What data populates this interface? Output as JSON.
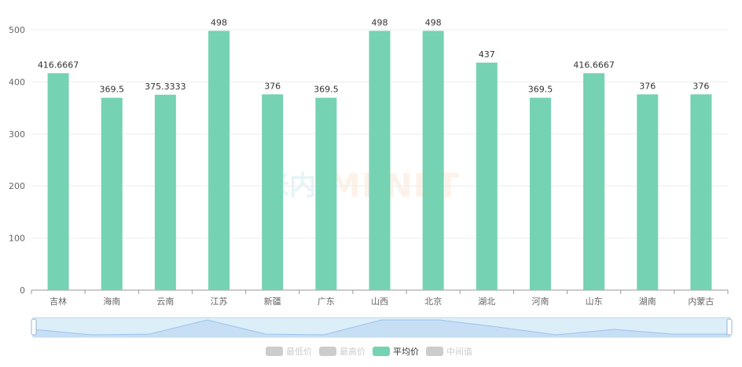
{
  "chart_data": {
    "type": "bar",
    "categories": [
      "吉林",
      "海南",
      "云南",
      "江苏",
      "新疆",
      "广东",
      "山西",
      "北京",
      "湖北",
      "河南",
      "山东",
      "湖南",
      "内蒙古"
    ],
    "series": [
      {
        "name": "平均价",
        "values": [
          416.6667,
          369.5,
          375.3333,
          498,
          376,
          369.5,
          498,
          498,
          437,
          369.5,
          416.6667,
          376,
          376
        ],
        "labels": [
          "416.6667",
          "369.5",
          "375.3333",
          "498",
          "376",
          "369.5",
          "498",
          "498",
          "437",
          "369.5",
          "416.6667",
          "376",
          "376"
        ],
        "color": "#75d2b2"
      }
    ],
    "ylim": [
      0,
      500
    ],
    "yticks": [
      "0",
      "100",
      "200",
      "300",
      "400",
      "500"
    ],
    "legend": {
      "placement": "bottom",
      "items": [
        {
          "name": "最低价",
          "active": false,
          "color": "#cccccc"
        },
        {
          "name": "最高价",
          "active": false,
          "color": "#cccccc"
        },
        {
          "name": "平均价",
          "active": true,
          "color": "#75d2b2"
        },
        {
          "name": "中间值",
          "active": false,
          "color": "#cccccc"
        }
      ]
    },
    "grid": true
  },
  "watermark": {
    "left_text": "米内",
    "right_text": "MENET"
  },
  "colors": {
    "axis": "#999999",
    "grid": "#eeeeee",
    "tick_text": "#666666",
    "legend_inactive_text": "#cccccc",
    "legend_active_text": "#333333",
    "zoom_fill": "#dceef8",
    "zoom_area": "#c7dff5",
    "zoom_line": "#9ac2ef"
  }
}
